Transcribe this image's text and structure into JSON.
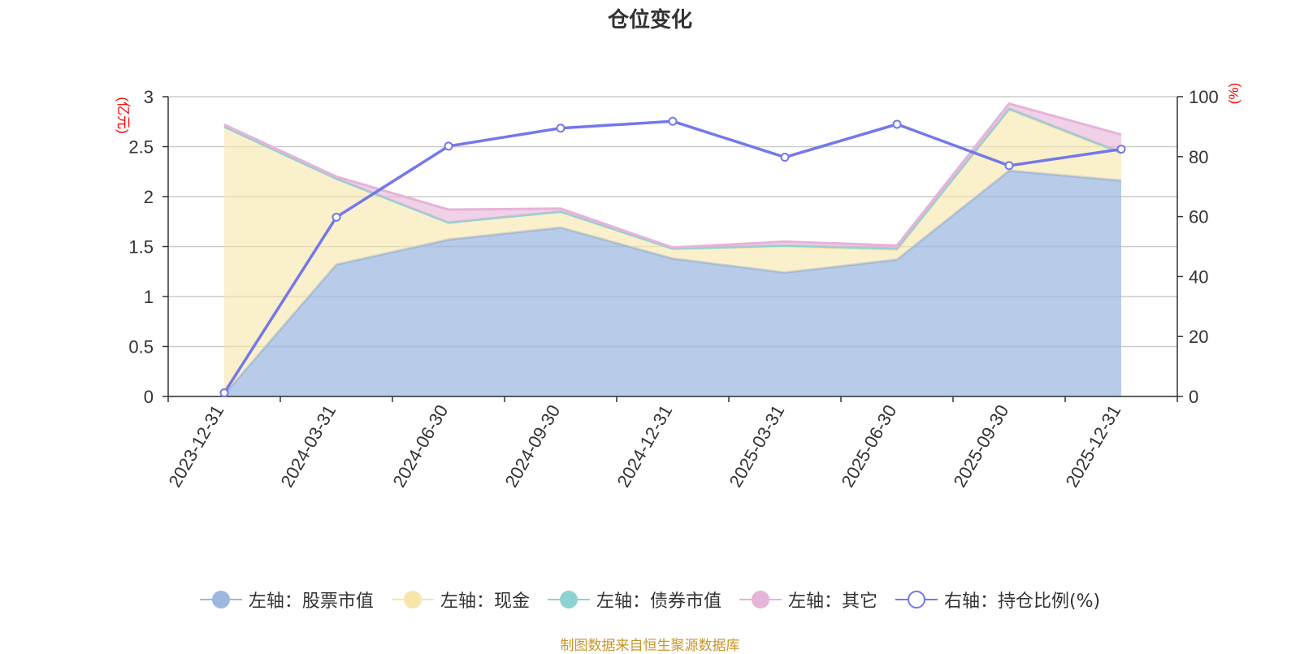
{
  "chart_data": {
    "type": "area",
    "title": "仓位变化",
    "x": [
      "2023-12-31",
      "2024-03-31",
      "2024-06-30",
      "2024-09-30",
      "2024-12-31",
      "2025-03-31",
      "2025-06-30",
      "2025-09-30",
      "2025-12-31"
    ],
    "y_left_label": "(亿元)",
    "y_right_label": "(%)",
    "y_left_ticks": [
      "0",
      "0.5",
      "1",
      "1.5",
      "2",
      "2.5",
      "3"
    ],
    "y_right_ticks": [
      "0",
      "20",
      "40",
      "60",
      "80",
      "100"
    ],
    "ylim_left": [
      0,
      3
    ],
    "ylim_right": [
      0,
      100
    ],
    "stacked": true,
    "grid": true,
    "legend_position": "bottom",
    "series": [
      {
        "name": "左轴：股票市值",
        "axis": "left",
        "type": "area",
        "color": "#9db7e0",
        "values": [
          0.02,
          1.32,
          1.57,
          1.69,
          1.38,
          1.24,
          1.37,
          2.26,
          2.16
        ]
      },
      {
        "name": "左轴：现金",
        "axis": "left",
        "type": "area",
        "color": "#f7e6a8",
        "values": [
          2.68,
          0.86,
          0.17,
          0.16,
          0.1,
          0.26,
          0.1,
          0.61,
          0.27
        ]
      },
      {
        "name": "左轴：债券市值",
        "axis": "left",
        "type": "area",
        "color": "#8dd3d1",
        "values": [
          0,
          0,
          0,
          0,
          0,
          0.01,
          0.01,
          0.01,
          0.01
        ]
      },
      {
        "name": "左轴：其它",
        "axis": "left",
        "type": "area",
        "color": "#e6b3d9",
        "values": [
          0.02,
          0.02,
          0.13,
          0.03,
          0.01,
          0.04,
          0.03,
          0.05,
          0.18
        ]
      },
      {
        "name": "右轴：持仓比例(%)",
        "axis": "right",
        "type": "line",
        "color": "#7478ea",
        "values": [
          1.2,
          59.8,
          83.5,
          89.5,
          91.8,
          79.8,
          90.8,
          77.0,
          82.5
        ]
      }
    ]
  },
  "source_note": "制图数据来自恒生聚源数据库"
}
